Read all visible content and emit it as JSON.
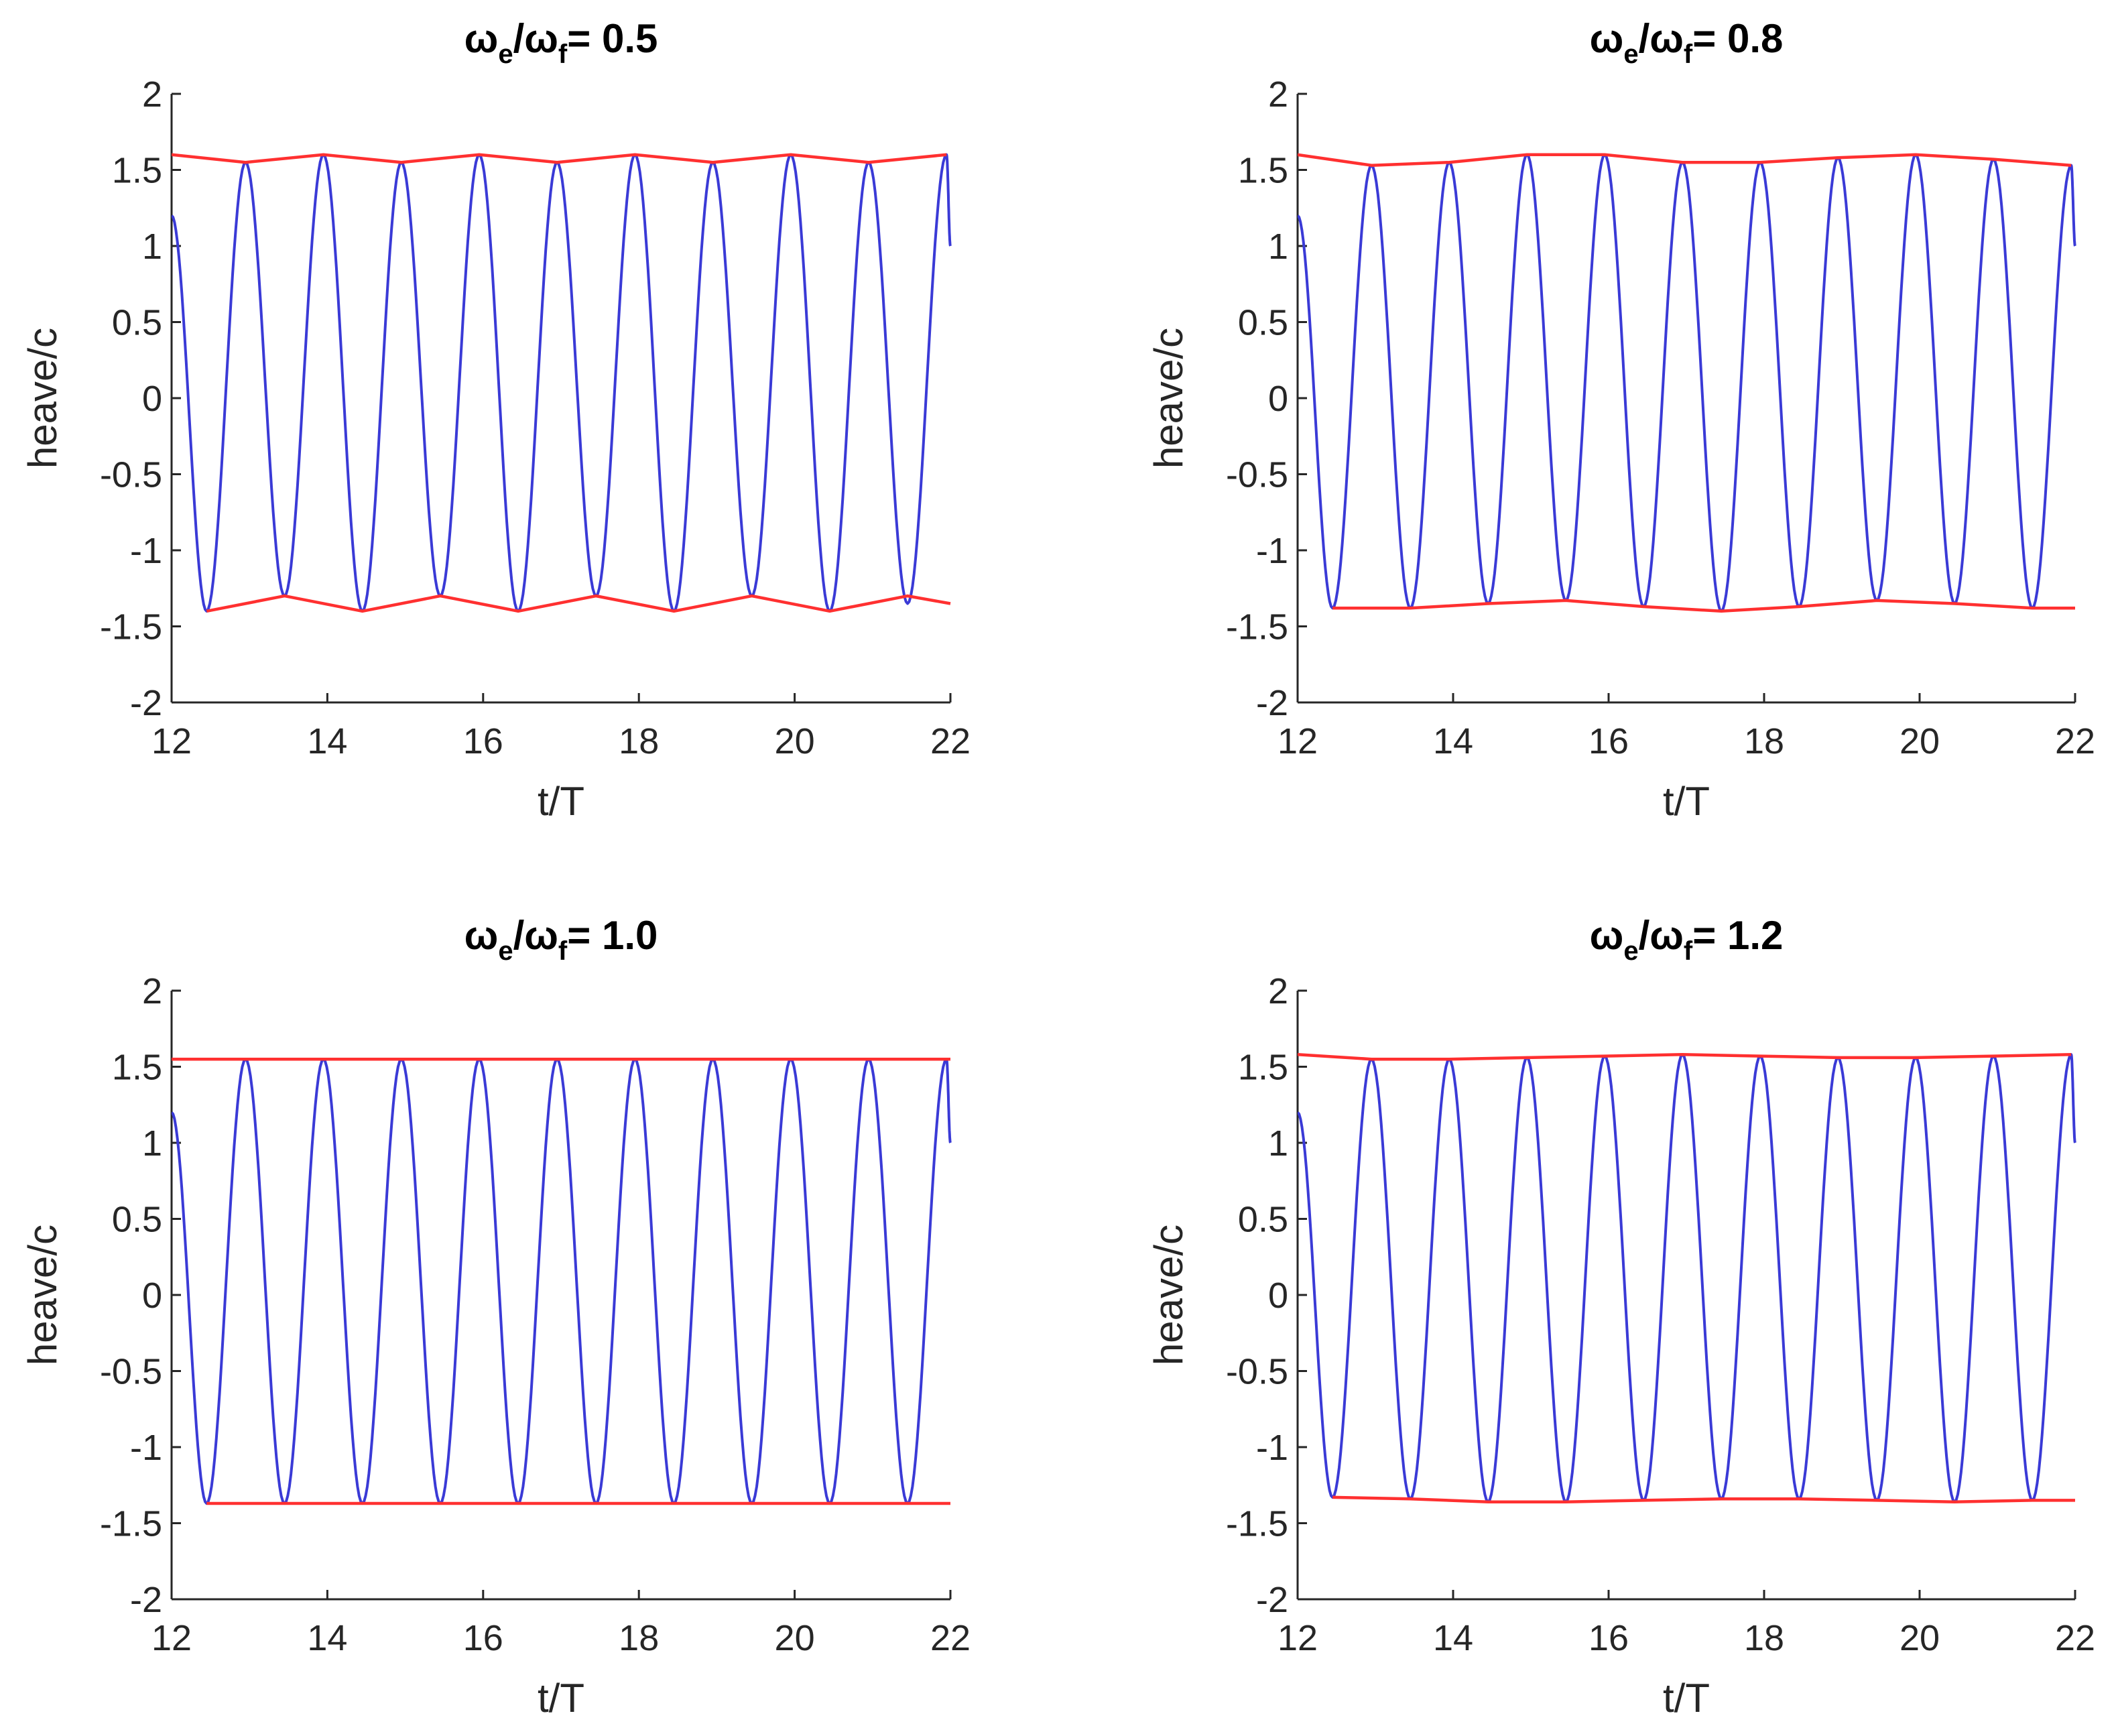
{
  "chart_data": [
    {
      "type": "line",
      "title": {
        "w1": "ω",
        "sub1": "e",
        "sep": "/ω",
        "sub2": "f",
        "rest": "= 0.5"
      },
      "xlabel": "t/T",
      "ylabel": "heave/c",
      "xlim": [
        12,
        22
      ],
      "ylim": [
        -2,
        2
      ],
      "xticks": [
        "12",
        "14",
        "16",
        "18",
        "20",
        "22"
      ],
      "yticks": [
        "2",
        "1.5",
        "1",
        "0.5",
        "0",
        "-0.5",
        "-1",
        "-1.5",
        "-2"
      ],
      "grid": false,
      "series": [
        {
          "color": "#3a3ad6",
          "style": "oscillation",
          "period": 1.0,
          "x_start": 12.0,
          "x_end": 22.0,
          "first_peak": 12.95,
          "peaks": [
            1.55,
            1.6,
            1.55,
            1.6,
            1.55,
            1.6,
            1.55,
            1.6,
            1.55,
            1.6
          ],
          "troughs": [
            -1.4,
            -1.3,
            -1.4,
            -1.3,
            -1.4,
            -1.3,
            -1.4,
            -1.3,
            -1.4,
            -1.35
          ]
        },
        {
          "color": "#ff3030",
          "style": "upper-envelope",
          "x": [
            12.0,
            12.95,
            13.95,
            14.95,
            15.95,
            16.95,
            17.95,
            18.95,
            19.95,
            20.95,
            21.95
          ],
          "y": [
            1.6,
            1.55,
            1.6,
            1.55,
            1.6,
            1.55,
            1.6,
            1.55,
            1.6,
            1.55,
            1.6
          ]
        },
        {
          "color": "#ff3030",
          "style": "lower-envelope",
          "x": [
            12.45,
            13.45,
            14.45,
            15.45,
            16.45,
            17.45,
            18.45,
            19.45,
            20.45,
            21.45,
            22.0
          ],
          "y": [
            -1.4,
            -1.3,
            -1.4,
            -1.3,
            -1.4,
            -1.3,
            -1.4,
            -1.3,
            -1.4,
            -1.3,
            -1.35
          ]
        }
      ]
    },
    {
      "type": "line",
      "title": {
        "w1": "ω",
        "sub1": "e",
        "sep": "/ω",
        "sub2": "f",
        "rest": "= 0.8"
      },
      "xlabel": "t/T",
      "ylabel": "heave/c",
      "xlim": [
        12,
        22
      ],
      "ylim": [
        -2,
        2
      ],
      "xticks": [
        "12",
        "14",
        "16",
        "18",
        "20",
        "22"
      ],
      "yticks": [
        "2",
        "1.5",
        "1",
        "0.5",
        "0",
        "-0.5",
        "-1",
        "-1.5",
        "-2"
      ],
      "grid": false,
      "series": [
        {
          "color": "#3a3ad6",
          "style": "oscillation",
          "period": 1.0,
          "x_start": 12.0,
          "x_end": 22.0,
          "first_peak": 12.95,
          "peaks": [
            1.53,
            1.55,
            1.6,
            1.6,
            1.55,
            1.55,
            1.58,
            1.6,
            1.57,
            1.53
          ],
          "troughs": [
            -1.38,
            -1.38,
            -1.35,
            -1.33,
            -1.37,
            -1.4,
            -1.37,
            -1.33,
            -1.35,
            -1.38
          ]
        },
        {
          "color": "#ff3030",
          "style": "upper-envelope",
          "x": [
            12.0,
            12.95,
            13.95,
            14.95,
            15.95,
            16.95,
            17.95,
            18.95,
            19.95,
            20.95,
            21.95
          ],
          "y": [
            1.6,
            1.53,
            1.55,
            1.6,
            1.6,
            1.55,
            1.55,
            1.58,
            1.6,
            1.57,
            1.53
          ]
        },
        {
          "color": "#ff3030",
          "style": "lower-envelope",
          "x": [
            12.45,
            13.45,
            14.45,
            15.45,
            16.45,
            17.45,
            18.45,
            19.45,
            20.45,
            21.45,
            22.0
          ],
          "y": [
            -1.38,
            -1.38,
            -1.35,
            -1.33,
            -1.37,
            -1.4,
            -1.37,
            -1.33,
            -1.35,
            -1.38,
            -1.38
          ]
        }
      ]
    },
    {
      "type": "line",
      "title": {
        "w1": "ω",
        "sub1": "e",
        "sep": "/ω",
        "sub2": "f",
        "rest": "= 1.0"
      },
      "xlabel": "t/T",
      "ylabel": "heave/c",
      "xlim": [
        12,
        22
      ],
      "ylim": [
        -2,
        2
      ],
      "xticks": [
        "12",
        "14",
        "16",
        "18",
        "20",
        "22"
      ],
      "yticks": [
        "2",
        "1.5",
        "1",
        "0.5",
        "0",
        "-0.5",
        "-1",
        "-1.5",
        "-2"
      ],
      "grid": false,
      "series": [
        {
          "color": "#3a3ad6",
          "style": "oscillation",
          "period": 1.0,
          "x_start": 12.0,
          "x_end": 22.0,
          "first_peak": 12.95,
          "peaks": [
            1.55,
            1.55,
            1.55,
            1.55,
            1.55,
            1.55,
            1.55,
            1.55,
            1.55,
            1.55
          ],
          "troughs": [
            -1.37,
            -1.37,
            -1.37,
            -1.37,
            -1.37,
            -1.37,
            -1.37,
            -1.37,
            -1.37,
            -1.37
          ]
        },
        {
          "color": "#ff3030",
          "style": "upper-envelope",
          "x": [
            12.0,
            22.0
          ],
          "y": [
            1.55,
            1.55
          ]
        },
        {
          "color": "#ff3030",
          "style": "lower-envelope",
          "x": [
            12.45,
            22.0
          ],
          "y": [
            -1.37,
            -1.37
          ]
        }
      ]
    },
    {
      "type": "line",
      "title": {
        "w1": "ω",
        "sub1": "e",
        "sep": "/ω",
        "sub2": "f",
        "rest": "= 1.2"
      },
      "xlabel": "t/T",
      "ylabel": "heave/c",
      "xlim": [
        12,
        22
      ],
      "ylim": [
        -2,
        2
      ],
      "xticks": [
        "12",
        "14",
        "16",
        "18",
        "20",
        "22"
      ],
      "yticks": [
        "2",
        "1.5",
        "1",
        "0.5",
        "0",
        "-0.5",
        "-1",
        "-1.5",
        "-2"
      ],
      "grid": false,
      "series": [
        {
          "color": "#3a3ad6",
          "style": "oscillation",
          "period": 1.0,
          "x_start": 12.0,
          "x_end": 22.0,
          "first_peak": 12.95,
          "peaks": [
            1.55,
            1.55,
            1.56,
            1.57,
            1.58,
            1.57,
            1.56,
            1.56,
            1.57,
            1.58
          ],
          "troughs": [
            -1.33,
            -1.34,
            -1.36,
            -1.36,
            -1.35,
            -1.34,
            -1.34,
            -1.35,
            -1.36,
            -1.35
          ]
        },
        {
          "color": "#ff3030",
          "style": "upper-envelope",
          "x": [
            12.0,
            12.95,
            13.95,
            14.95,
            15.95,
            16.95,
            17.95,
            18.95,
            19.95,
            20.95,
            21.95
          ],
          "y": [
            1.58,
            1.55,
            1.55,
            1.56,
            1.57,
            1.58,
            1.57,
            1.56,
            1.56,
            1.57,
            1.58
          ]
        },
        {
          "color": "#ff3030",
          "style": "lower-envelope",
          "x": [
            12.45,
            13.45,
            14.45,
            15.45,
            16.45,
            17.45,
            18.45,
            19.45,
            20.45,
            21.45,
            22.0
          ],
          "y": [
            -1.33,
            -1.34,
            -1.36,
            -1.36,
            -1.35,
            -1.34,
            -1.34,
            -1.35,
            -1.36,
            -1.35,
            -1.35
          ]
        }
      ]
    }
  ]
}
